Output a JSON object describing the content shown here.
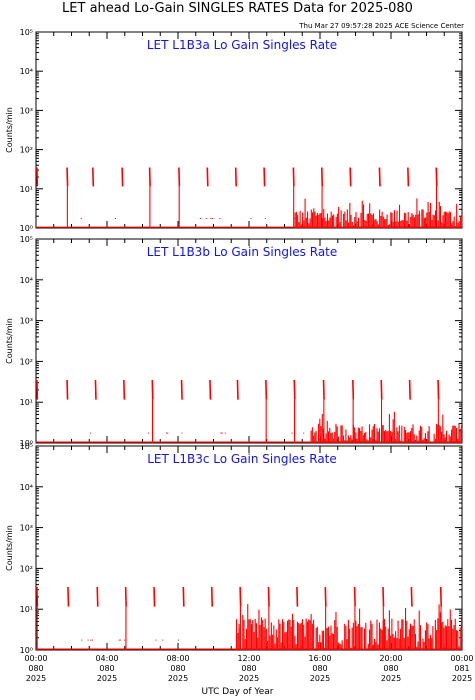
{
  "title": "LET ahead Lo-Gain SINGLES RATES Data for 2025-080",
  "timestamp": "Thu Mar 27 09:57:28 2025 ACE Science Center",
  "xlabel": "UTC Day of Year",
  "colors": {
    "panel_title": "#1515e0",
    "data": "#ff0000",
    "axis": "#000000"
  },
  "chart_data": [
    {
      "type": "line",
      "title": "LET L1B3a Lo Gain Singles Rate",
      "ylabel": "Counts/min",
      "yscale": "log",
      "ylim": [
        1,
        100000
      ],
      "xlim": [
        0,
        24
      ],
      "ytick_labels": [
        "10⁰",
        "10¹",
        "10²",
        "10³",
        "10⁴",
        "10⁵"
      ],
      "series": [
        {
          "spikes": [
            {
              "x": 0.05,
              "y": 35
            },
            {
              "x": 1.75,
              "y": 35
            },
            {
              "x": 3.2,
              "y": 35
            },
            {
              "x": 4.85,
              "y": 35
            },
            {
              "x": 6.4,
              "y": 35
            },
            {
              "x": 8.05,
              "y": 35
            },
            {
              "x": 9.65,
              "y": 35
            },
            {
              "x": 11.25,
              "y": 35
            },
            {
              "x": 12.85,
              "y": 35
            },
            {
              "x": 14.5,
              "y": 35
            },
            {
              "x": 16.1,
              "y": 35
            },
            {
              "x": 17.7,
              "y": 35
            },
            {
              "x": 19.35,
              "y": 35
            },
            {
              "x": 20.95,
              "y": 35
            },
            {
              "x": 22.55,
              "y": 35
            }
          ],
          "background_start": 14.6,
          "background_level": [
            1,
            3
          ]
        }
      ]
    },
    {
      "type": "line",
      "title": "LET L1B3b Lo Gain Singles Rate",
      "ylabel": "Counts/min",
      "yscale": "log",
      "ylim": [
        1,
        100000
      ],
      "xlim": [
        0,
        24
      ],
      "ytick_labels": [
        "10⁰",
        "10¹",
        "10²",
        "10³",
        "10⁴",
        "10⁵"
      ],
      "series": [
        {
          "spikes": [
            {
              "x": 0.05,
              "y": 35
            },
            {
              "x": 1.75,
              "y": 35
            },
            {
              "x": 3.35,
              "y": 35
            },
            {
              "x": 4.95,
              "y": 35
            },
            {
              "x": 6.55,
              "y": 35
            },
            {
              "x": 8.2,
              "y": 35
            },
            {
              "x": 9.8,
              "y": 35
            },
            {
              "x": 11.35,
              "y": 35
            },
            {
              "x": 12.95,
              "y": 35
            },
            {
              "x": 14.55,
              "y": 35
            },
            {
              "x": 16.2,
              "y": 35
            },
            {
              "x": 17.85,
              "y": 35
            },
            {
              "x": 19.45,
              "y": 35
            },
            {
              "x": 21.05,
              "y": 35
            },
            {
              "x": 22.65,
              "y": 35
            }
          ],
          "background_start": 15.5,
          "background_level": [
            1,
            3
          ]
        }
      ]
    },
    {
      "type": "line",
      "title": "LET L1B3c Lo Gain Singles Rate",
      "ylabel": "Counts/min",
      "yscale": "log",
      "ylim": [
        1,
        100000
      ],
      "xlim": [
        0,
        24
      ],
      "ytick_labels": [
        "10⁰",
        "10¹",
        "10²",
        "10³",
        "10⁴",
        "10⁵"
      ],
      "series": [
        {
          "spikes": [
            {
              "x": 0.05,
              "y": 35
            },
            {
              "x": 1.8,
              "y": 35
            },
            {
              "x": 3.45,
              "y": 35
            },
            {
              "x": 5.05,
              "y": 35
            },
            {
              "x": 6.65,
              "y": 35
            },
            {
              "x": 8.3,
              "y": 35
            },
            {
              "x": 9.9,
              "y": 35
            },
            {
              "x": 11.5,
              "y": 35
            },
            {
              "x": 13.1,
              "y": 35
            },
            {
              "x": 14.7,
              "y": 35
            },
            {
              "x": 16.3,
              "y": 35
            },
            {
              "x": 17.95,
              "y": 35
            },
            {
              "x": 19.55,
              "y": 35
            },
            {
              "x": 21.15,
              "y": 35
            },
            {
              "x": 22.8,
              "y": 35
            }
          ],
          "background_start": 11.3,
          "background_level": [
            1,
            6
          ]
        }
      ]
    }
  ],
  "x_ticks": [
    {
      "x": 0,
      "time": "00:00",
      "doy": "080",
      "year": "2025"
    },
    {
      "x": 4,
      "time": "04:00",
      "doy": "080",
      "year": "2025"
    },
    {
      "x": 8,
      "time": "08:00",
      "doy": "080",
      "year": "2025"
    },
    {
      "x": 12,
      "time": "12:00",
      "doy": "080",
      "year": "2025"
    },
    {
      "x": 16,
      "time": "16:00",
      "doy": "080",
      "year": "2025"
    },
    {
      "x": 20,
      "time": "20:00",
      "doy": "080",
      "year": "2025"
    },
    {
      "x": 24,
      "time": "00:00",
      "doy": "081",
      "year": "2025"
    }
  ]
}
